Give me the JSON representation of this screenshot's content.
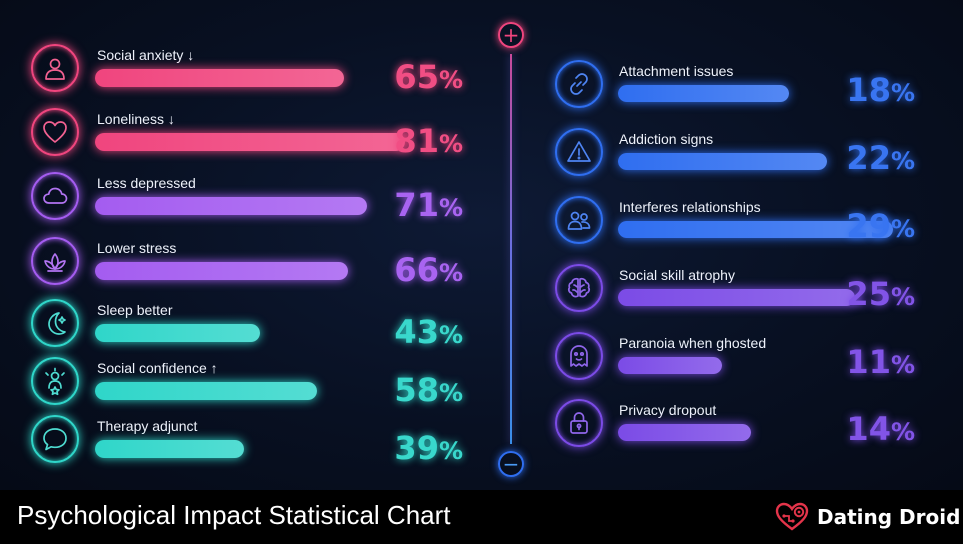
{
  "colors": {
    "pink": "#f0457e",
    "violet": "#a45cf0",
    "teal": "#2fd6c9",
    "blue": "#2f6ef0",
    "purple": "#7b4be6"
  },
  "axis": {
    "zoom_in_icon": "plus-icon",
    "zoom_out_icon": "minus-icon"
  },
  "chart_data": {
    "type": "bar",
    "orientation": "horizontal",
    "xlim": [
      0,
      100
    ],
    "grid": false,
    "unit": "%",
    "groups": [
      {
        "items": [
          {
            "label": "Social anxiety ↓",
            "value": 65,
            "color": "#f0457e",
            "icon": "user-icon"
          },
          {
            "label": "Loneliness ↓",
            "value": 81,
            "color": "#f0457e",
            "icon": "heart-icon"
          },
          {
            "label": "Less depressed",
            "value": 71,
            "color": "#a45cf0",
            "icon": "cloud-icon"
          },
          {
            "label": "Lower stress",
            "value": 66,
            "color": "#a45cf0",
            "icon": "lotus-icon"
          },
          {
            "label": "Sleep better",
            "value": 43,
            "color": "#2fd6c9",
            "icon": "moon-icon"
          },
          {
            "label": "Social confidence ↑",
            "value": 58,
            "color": "#2fd6c9",
            "icon": "confident-person-icon"
          },
          {
            "label": "Therapy adjunct",
            "value": 39,
            "color": "#2fd6c9",
            "icon": "speech-bubble-icon"
          }
        ]
      },
      {
        "items": [
          {
            "label": "Attachment issues",
            "value": 18,
            "color": "#2f6ef0",
            "icon": "link-icon"
          },
          {
            "label": "Addiction signs",
            "value": 22,
            "color": "#2f6ef0",
            "icon": "warning-icon"
          },
          {
            "label": "Interferes relationships",
            "value": 29,
            "color": "#2f6ef0",
            "icon": "people-icon"
          },
          {
            "label": "Social skill atrophy",
            "value": 25,
            "color": "#7b4be6",
            "icon": "brain-icon"
          },
          {
            "label": "Paranoia when ghosted",
            "value": 11,
            "color": "#7b4be6",
            "icon": "ghost-icon"
          },
          {
            "label": "Privacy dropout",
            "value": 14,
            "color": "#7b4be6",
            "icon": "lock-icon"
          }
        ]
      }
    ]
  },
  "footer": {
    "title": "Psychological Impact Statistical Chart",
    "brand_name": "Dating Droid",
    "brand_icon": "heart-gear-icon"
  }
}
